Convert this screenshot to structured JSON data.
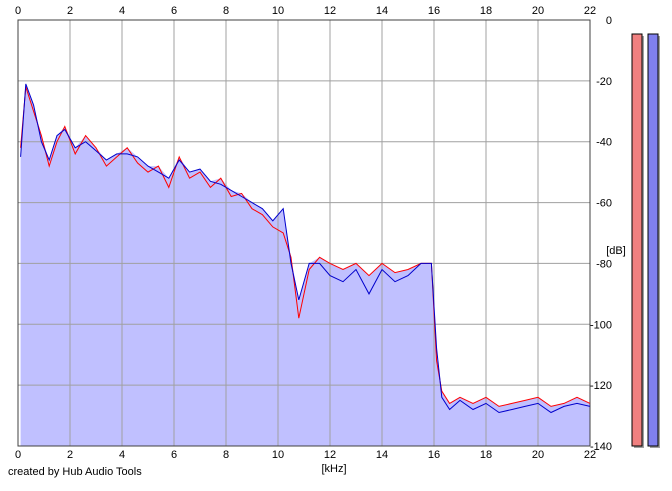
{
  "chart_data": {
    "type": "area",
    "title": "",
    "xlabel": "[kHz]",
    "ylabel": "[dB]",
    "xlim": [
      0,
      22
    ],
    "ylim": [
      -140,
      0
    ],
    "x_ticks": [
      0,
      2,
      4,
      6,
      8,
      10,
      12,
      14,
      16,
      18,
      20,
      22
    ],
    "y_ticks": [
      0,
      -20,
      -40,
      -60,
      -80,
      -100,
      -120,
      -140
    ],
    "grid": true,
    "legend": "none",
    "series": [
      {
        "color": "#ff0000",
        "x": [
          0.1,
          0.3,
          0.6,
          0.9,
          1.2,
          1.5,
          1.8,
          2.2,
          2.6,
          3.0,
          3.4,
          3.8,
          4.2,
          4.6,
          5.0,
          5.4,
          5.8,
          6.2,
          6.6,
          7.0,
          7.4,
          7.8,
          8.2,
          8.6,
          9.0,
          9.4,
          9.8,
          10.2,
          10.5,
          10.8,
          11.2,
          11.6,
          12.0,
          12.5,
          13.0,
          13.5,
          14.0,
          14.5,
          15.0,
          15.5,
          15.9,
          16.1,
          16.3,
          16.6,
          17.0,
          17.5,
          18.0,
          18.5,
          19.0,
          19.5,
          20.0,
          20.5,
          21.0,
          21.5,
          22.0
        ],
        "y": [
          -42,
          -22,
          -30,
          -38,
          -48,
          -40,
          -35,
          -44,
          -38,
          -42,
          -48,
          -45,
          -42,
          -47,
          -50,
          -48,
          -55,
          -45,
          -52,
          -50,
          -55,
          -52,
          -58,
          -57,
          -62,
          -64,
          -68,
          -70,
          -78,
          -98,
          -82,
          -78,
          -80,
          -82,
          -80,
          -84,
          -80,
          -83,
          -82,
          -80,
          -80,
          -112,
          -122,
          -126,
          -124,
          -126,
          -124,
          -127,
          -126,
          -125,
          -124,
          -127,
          -126,
          -124,
          -126
        ]
      },
      {
        "color": "#0000cc",
        "x": [
          0.1,
          0.3,
          0.6,
          0.9,
          1.2,
          1.5,
          1.8,
          2.2,
          2.6,
          3.0,
          3.4,
          3.8,
          4.2,
          4.6,
          5.0,
          5.4,
          5.8,
          6.2,
          6.6,
          7.0,
          7.4,
          7.8,
          8.2,
          8.6,
          9.0,
          9.4,
          9.8,
          10.2,
          10.5,
          10.8,
          11.2,
          11.6,
          12.0,
          12.5,
          13.0,
          13.5,
          14.0,
          14.5,
          15.0,
          15.5,
          15.9,
          16.1,
          16.3,
          16.6,
          17.0,
          17.5,
          18.0,
          18.5,
          19.0,
          19.5,
          20.0,
          20.5,
          21.0,
          21.5,
          22.0
        ],
        "y": [
          -45,
          -21,
          -28,
          -40,
          -46,
          -38,
          -36,
          -42,
          -40,
          -43,
          -46,
          -44,
          -44,
          -45,
          -48,
          -50,
          -52,
          -46,
          -50,
          -49,
          -53,
          -54,
          -56,
          -58,
          -60,
          -62,
          -66,
          -62,
          -80,
          -92,
          -80,
          -80,
          -84,
          -86,
          -82,
          -90,
          -82,
          -86,
          -84,
          -80,
          -80,
          -108,
          -124,
          -128,
          -125,
          -128,
          -126,
          -129,
          -128,
          -127,
          -126,
          -129,
          -127,
          -126,
          -127
        ]
      }
    ]
  },
  "meters": {
    "left_color": "#f08080",
    "right_color": "#8080ee",
    "left_level_db": -140,
    "right_level_db": -140
  },
  "credit": "created by Hub Audio Tools"
}
